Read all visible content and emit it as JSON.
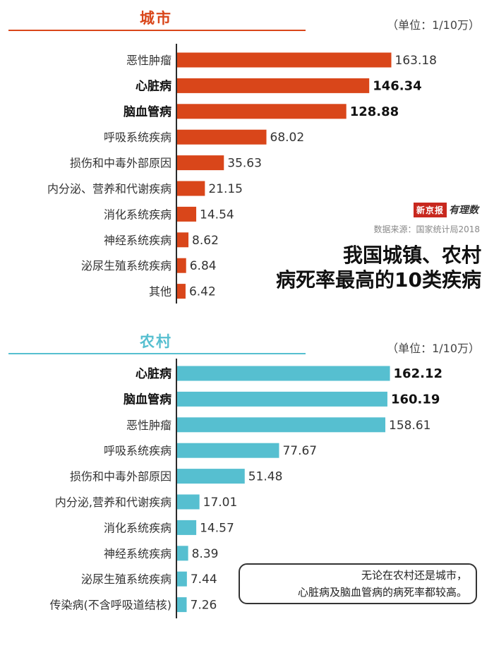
{
  "urban": {
    "title": "城市",
    "unit": "（单位：1/10万）",
    "color": "#d9461a"
  },
  "rural": {
    "title": "农村",
    "unit": "（单位：1/10万）",
    "color": "#56bfd0"
  },
  "logo": {
    "box_text": "新京报",
    "script_text": "有理数"
  },
  "source": "数据来源：国家统计局2018",
  "headline": {
    "line1": "我国城镇、农村",
    "line2": "病死率最高的10类疾病"
  },
  "note": {
    "line1": "无论在农村还是城市，",
    "line2": "心脏病及脑血管病的病死率都较高。"
  },
  "chart_data": [
    {
      "type": "bar",
      "orientation": "horizontal",
      "title": "城市",
      "unit": "（单位：1/10万）",
      "color": "#d9461a",
      "categories": [
        "恶性肿瘤",
        "心脏病",
        "脑血管病",
        "呼吸系统疾病",
        "损伤和中毒外部原因",
        "内分泌、营养和代谢疾病",
        "消化系统疾病",
        "神经系统疾病",
        "泌尿生殖系统疾病",
        "其他"
      ],
      "values": [
        163.18,
        146.34,
        128.88,
        68.02,
        35.63,
        21.15,
        14.54,
        8.62,
        6.84,
        6.42
      ],
      "value_labels": [
        "163.18",
        "146.34",
        "128.88",
        "68.02",
        "35.63",
        "21.15",
        "14.54",
        "8.62",
        "6.84",
        "6.42"
      ],
      "bold": [
        false,
        true,
        true,
        false,
        false,
        false,
        false,
        false,
        false,
        false
      ],
      "xlim": [
        0,
        170
      ],
      "grid": false,
      "legend": "none"
    },
    {
      "type": "bar",
      "orientation": "horizontal",
      "title": "农村",
      "unit": "（单位：1/10万）",
      "color": "#56bfd0",
      "categories": [
        "心脏病",
        "脑血管病",
        "恶性肿瘤",
        "呼吸系统疾病",
        "损伤和中毒外部原因",
        "内分泌,营养和代谢疾病",
        "消化系统疾病",
        "神经系统疾病",
        "泌尿生殖系统疾病",
        "传染病(不含呼吸道结核)"
      ],
      "values": [
        162.12,
        160.19,
        158.61,
        77.67,
        51.48,
        17.01,
        14.57,
        8.39,
        7.44,
        7.26
      ],
      "value_labels": [
        "162.12",
        "160.19",
        "158.61",
        "77.67",
        "51.48",
        "17.01",
        "14.57",
        "8.39",
        "7.44",
        "7.26"
      ],
      "bold": [
        true,
        true,
        false,
        false,
        false,
        false,
        false,
        false,
        false,
        false
      ],
      "xlim": [
        0,
        170
      ],
      "grid": false,
      "legend": "none"
    }
  ]
}
